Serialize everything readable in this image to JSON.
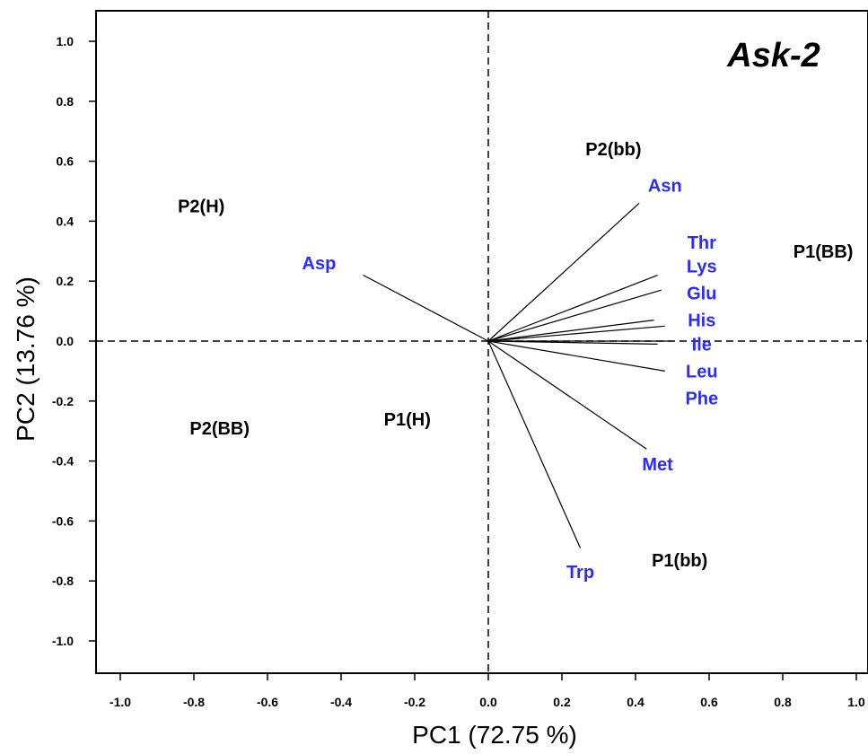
{
  "chart_data": {
    "type": "scatter",
    "title": "Ask-2",
    "xlabel": "PC1  (72.75 %)",
    "ylabel": "PC2  (13.76 %)",
    "xlim": [
      -1.1,
      1.03
    ],
    "ylim": [
      -1.1,
      1.11
    ],
    "xticks": [
      "-1.0",
      "-0.8",
      "-0.6",
      "-0.4",
      "-0.2",
      "0.0",
      "0.2",
      "0.4",
      "0.6",
      "0.8",
      "1.0"
    ],
    "yticks": [
      "1.0",
      "0.8",
      "0.6",
      "0.4",
      "0.2",
      "0.0",
      "-0.2",
      "-0.4",
      "-0.6",
      "-0.8",
      "-1.0"
    ],
    "reference_lines": {
      "x": 0,
      "y": 0,
      "style": "dashed"
    },
    "observations": [
      {
        "label": "P2(bb)",
        "x": 0.34,
        "y": 0.64
      },
      {
        "label": "P2(H)",
        "x": -0.78,
        "y": 0.45
      },
      {
        "label": "P1(BB)",
        "x": 0.91,
        "y": 0.3
      },
      {
        "label": "P2(BB)",
        "x": -0.73,
        "y": -0.29
      },
      {
        "label": "P1(H)",
        "x": -0.22,
        "y": -0.26
      },
      {
        "label": "P1(bb)",
        "x": 0.52,
        "y": -0.73
      }
    ],
    "loadings": [
      {
        "label": "Asn",
        "x": 0.41,
        "y": 0.46,
        "label_x": 0.48,
        "label_y": 0.52
      },
      {
        "label": "Asp",
        "x": -0.34,
        "y": 0.22,
        "label_x": -0.46,
        "label_y": 0.26
      },
      {
        "label": "Thr",
        "x": 0.46,
        "y": 0.22,
        "label_x": 0.58,
        "label_y": 0.33
      },
      {
        "label": "Lys",
        "x": 0.47,
        "y": 0.17,
        "label_x": 0.58,
        "label_y": 0.25
      },
      {
        "label": "Glu",
        "x": 0.45,
        "y": 0.07,
        "label_x": 0.58,
        "label_y": 0.16
      },
      {
        "label": "His",
        "x": 0.48,
        "y": 0.05,
        "label_x": 0.58,
        "label_y": 0.07
      },
      {
        "label": "Ile",
        "x": 0.5,
        "y": 0.0,
        "label_x": 0.58,
        "label_y": -0.01
      },
      {
        "label": "Leu",
        "x": 0.48,
        "y": -0.1,
        "label_x": 0.58,
        "label_y": -0.1
      },
      {
        "label": "Phe",
        "x": 0.46,
        "y": -0.01,
        "label_x": 0.58,
        "label_y": -0.19
      },
      {
        "label": "Met",
        "x": 0.43,
        "y": -0.36,
        "label_x": 0.46,
        "label_y": -0.41
      },
      {
        "label": "Trp",
        "x": 0.25,
        "y": -0.69,
        "label_x": 0.25,
        "label_y": -0.77
      }
    ],
    "grid": false,
    "colors": {
      "observation": "#000000",
      "loading": "#2b2bff",
      "line": "#000000"
    }
  }
}
